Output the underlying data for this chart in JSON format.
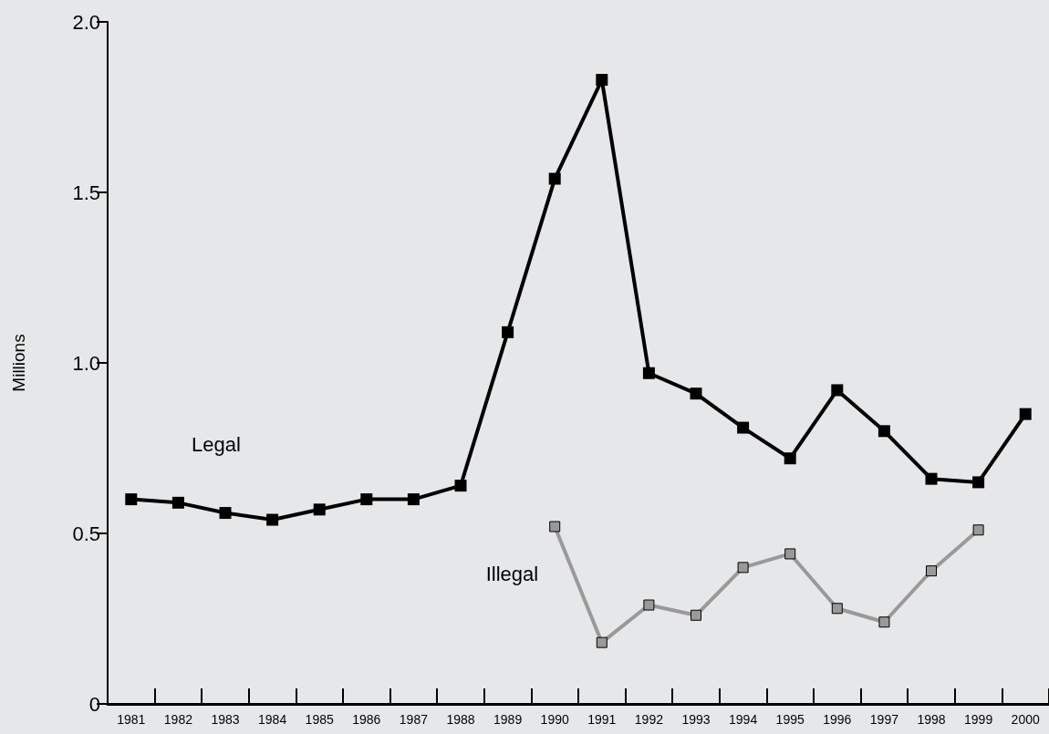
{
  "chart_data": {
    "type": "line",
    "ylabel": "Millions",
    "categories": [
      "1981",
      "1982",
      "1983",
      "1984",
      "1985",
      "1986",
      "1987",
      "1988",
      "1989",
      "1990",
      "1991",
      "1992",
      "1993",
      "1994",
      "1995",
      "1996",
      "1997",
      "1998",
      "1999",
      "2000"
    ],
    "series": [
      {
        "name": "Legal",
        "color": "#000000",
        "values": [
          0.6,
          0.59,
          0.56,
          0.54,
          0.57,
          0.6,
          0.6,
          0.64,
          1.09,
          1.54,
          1.83,
          0.97,
          0.91,
          0.81,
          0.72,
          0.92,
          0.8,
          0.66,
          0.65,
          0.85
        ]
      },
      {
        "name": "Illegal",
        "color": "#999999",
        "values": [
          null,
          null,
          null,
          null,
          null,
          null,
          null,
          null,
          null,
          0.52,
          0.18,
          0.29,
          0.26,
          0.4,
          0.44,
          0.28,
          0.24,
          0.39,
          0.51,
          null
        ]
      }
    ],
    "ylim": [
      0,
      2.0
    ],
    "yticks": [
      0,
      {
        "value": 0.5,
        "label": "0.5"
      },
      {
        "value": 1,
        "label": "1.0"
      },
      {
        "value": 1.5,
        "label": "1.5"
      },
      {
        "value": 2,
        "label": "2.0"
      }
    ],
    "grid": false,
    "legend": false,
    "marker": "square",
    "line_style": "solid"
  }
}
